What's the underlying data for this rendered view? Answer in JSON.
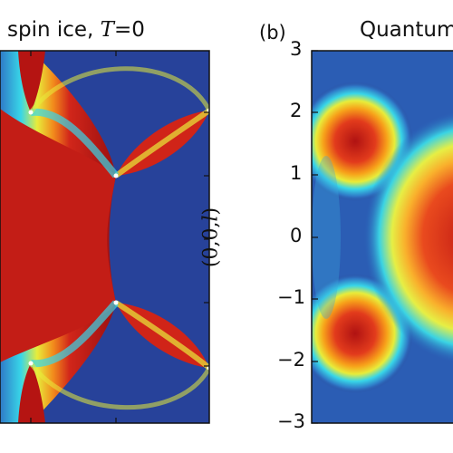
{
  "chart_data": [
    {
      "type": "heatmap",
      "panel": "",
      "title_text": "spin ice, ",
      "title_var": "T",
      "title_eq": "=0",
      "ylabel": "",
      "yticks": [],
      "colormap": "jet"
    },
    {
      "type": "heatmap",
      "panel": "(b)",
      "title_text": "Quantum",
      "ylabel_prefix": "(0,0,",
      "ylabel_var": "l",
      "ylabel_suffix": ")",
      "yticks": [
        "3",
        "2",
        "1",
        "0",
        "−1",
        "−2",
        "−3"
      ],
      "ylim": [
        -3,
        3
      ],
      "colormap": "jet"
    }
  ]
}
